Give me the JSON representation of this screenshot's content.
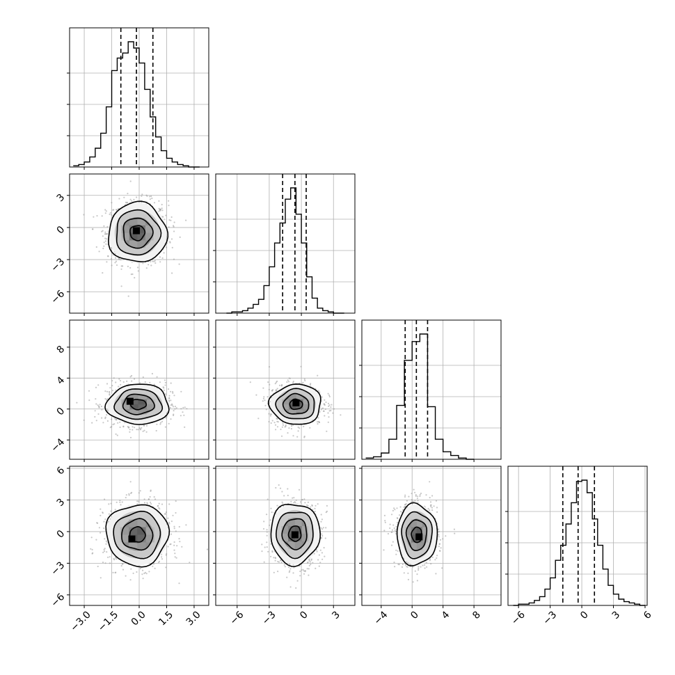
{
  "chart_data": {
    "type": "corner",
    "parameters": 4,
    "axes": [
      {
        "range": [
          -3.8,
          3.8
        ],
        "ticks": [
          -3.0,
          -1.5,
          0.0,
          1.5,
          3.0
        ],
        "tick_labels": [
          "−3.0",
          "−1.5",
          "0.0",
          "1.5",
          "3.0"
        ]
      },
      {
        "range": [
          -8.0,
          5.0
        ],
        "ticks": [
          -6,
          -3,
          0,
          3
        ],
        "tick_labels": [
          "−6",
          "−3",
          "0",
          "3"
        ]
      },
      {
        "range": [
          -6.5,
          11.5
        ],
        "ticks": [
          -4,
          0,
          4,
          8
        ],
        "tick_labels": [
          "−4",
          "0",
          "4",
          "8"
        ]
      },
      {
        "range": [
          -7.0,
          6.2
        ],
        "ticks": [
          -6,
          -3,
          0,
          3,
          6
        ],
        "tick_labels": [
          "−6",
          "−3",
          "0",
          "3",
          "6"
        ]
      }
    ],
    "histograms": [
      {
        "param": 0,
        "bin_edges": [
          -3.6,
          -3.3,
          -3.0,
          -2.7,
          -2.4,
          -2.1,
          -1.8,
          -1.5,
          -1.2,
          -0.9,
          -0.6,
          -0.3,
          0.0,
          0.3,
          0.6,
          0.9,
          1.2,
          1.5,
          1.8,
          2.1,
          2.4,
          2.7,
          3.0,
          3.3
        ],
        "counts": [
          1,
          2,
          4,
          8,
          15,
          27,
          48,
          77,
          87,
          91,
          100,
          95,
          83,
          62,
          40,
          24,
          13,
          7,
          4,
          2,
          1,
          0,
          0
        ],
        "quantiles": [
          -1.0,
          -0.15,
          0.75
        ]
      },
      {
        "param": 1,
        "bin_edges": [
          -7.0,
          -6.5,
          -6.0,
          -5.5,
          -5.0,
          -4.5,
          -4.0,
          -3.5,
          -3.0,
          -2.5,
          -2.0,
          -1.5,
          -1.0,
          -0.5,
          0.0,
          0.5,
          1.0,
          1.5,
          2.0,
          2.5,
          3.0,
          3.5,
          4.0
        ],
        "counts": [
          0,
          1,
          1,
          2,
          4,
          7,
          11,
          22,
          37,
          56,
          72,
          91,
          100,
          79,
          56,
          29,
          12,
          4,
          2,
          1,
          0,
          0
        ],
        "quantiles": [
          -1.75,
          -0.6,
          0.45
        ]
      },
      {
        "param": 2,
        "bin_edges": [
          -6.0,
          -5.0,
          -4.0,
          -3.0,
          -2.0,
          -1.0,
          0.0,
          1.0,
          2.0,
          3.0,
          4.0,
          5.0,
          6.0,
          7.0,
          8.0
        ],
        "counts": [
          1,
          2,
          5,
          16,
          43,
          79,
          94,
          100,
          42,
          16,
          6,
          3,
          1,
          0
        ],
        "quantiles": [
          -0.9,
          0.55,
          2.0
        ]
      },
      {
        "param": 3,
        "bin_edges": [
          -6.5,
          -6.0,
          -5.5,
          -5.0,
          -4.5,
          -4.0,
          -3.5,
          -3.0,
          -2.5,
          -2.0,
          -1.5,
          -1.0,
          -0.5,
          0.0,
          0.5,
          1.0,
          1.5,
          2.0,
          2.5,
          3.0,
          3.5,
          4.0,
          4.5,
          5.0,
          5.5,
          6.0
        ],
        "counts": [
          0,
          1,
          1,
          2,
          4,
          7,
          13,
          22,
          36,
          48,
          65,
          82,
          99,
          100,
          90,
          69,
          48,
          29,
          16,
          9,
          5,
          3,
          2,
          1,
          0
        ],
        "quantiles": [
          -1.8,
          -0.35,
          1.2
        ]
      }
    ],
    "pairs": [
      {
        "x": 0,
        "y": 1,
        "center": [
          -0.1,
          -0.5
        ],
        "sigma": [
          0.8,
          1.4
        ],
        "peak": [
          -0.15,
          -0.3
        ]
      },
      {
        "x": 0,
        "y": 2,
        "center": [
          -0.05,
          0.6
        ],
        "sigma": [
          0.85,
          1.3
        ],
        "peak": [
          -0.5,
          1.0
        ]
      },
      {
        "x": 1,
        "y": 2,
        "center": [
          -0.5,
          0.6
        ],
        "sigma": [
          1.2,
          1.3
        ],
        "peak": [
          -0.5,
          0.8
        ]
      },
      {
        "x": 0,
        "y": 3,
        "center": [
          -0.1,
          -0.3
        ],
        "sigma": [
          0.85,
          1.45
        ],
        "peak": [
          -0.4,
          -0.7
        ]
      },
      {
        "x": 1,
        "y": 3,
        "center": [
          -0.6,
          -0.2
        ],
        "sigma": [
          1.15,
          1.45
        ],
        "peak": [
          -0.6,
          -0.3
        ]
      },
      {
        "x": 2,
        "y": 3,
        "center": [
          0.6,
          -0.3
        ],
        "sigma": [
          1.3,
          1.45
        ],
        "peak": [
          0.9,
          -0.5
        ]
      }
    ],
    "contour_levels_sigma": [
      0.5,
      1.0,
      1.5,
      2.0
    ],
    "grid": true
  }
}
